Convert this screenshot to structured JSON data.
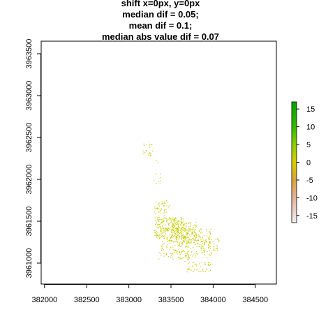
{
  "title_lines": [
    "shift x=0px, y=0px",
    "median dif = 0.05;",
    "mean dif = 0.1;",
    "median abs value dif = 0.07"
  ],
  "chart_data": {
    "type": "scatter",
    "title": "shift x=0px, y=0px\nmedian dif = 0.05;\nmean dif = 0.1;\nmedian abs value dif = 0.07",
    "xlabel": "",
    "ylabel": "",
    "xlim": [
      381960,
      384750
    ],
    "ylim": [
      3960750,
      3963650
    ],
    "x_ticks": [
      382000,
      382500,
      383000,
      383500,
      384000,
      384500
    ],
    "x_tick_labels": [
      "382000",
      "382500",
      "383000",
      "383500",
      "384000",
      "384500"
    ],
    "y_ticks": [
      3961000,
      3961500,
      3962000,
      3962500,
      3963000,
      3963500
    ],
    "y_tick_labels": [
      "3961000",
      "3961500",
      "3962000",
      "3962500",
      "3963000",
      "3963500"
    ],
    "grid": false,
    "point_color": "#c8d000",
    "point_value_range": [
      -0.5,
      0.5
    ],
    "point_clusters": [
      {
        "x": [
          383150,
          383280
        ],
        "y": [
          3962250,
          3962450
        ],
        "n": 22
      },
      {
        "x": [
          383250,
          383420
        ],
        "y": [
          3961950,
          3962250
        ],
        "n": 10
      },
      {
        "x": [
          383300,
          383480
        ],
        "y": [
          3961550,
          3961750
        ],
        "n": 45
      },
      {
        "x": [
          383300,
          383650
        ],
        "y": [
          3961300,
          3961550
        ],
        "n": 260
      },
      {
        "x": [
          383500,
          383800
        ],
        "y": [
          3961250,
          3961500
        ],
        "n": 150
      },
      {
        "x": [
          383650,
          383980
        ],
        "y": [
          3961180,
          3961420
        ],
        "n": 120
      },
      {
        "x": [
          383850,
          384080
        ],
        "y": [
          3961150,
          3961300
        ],
        "n": 45
      },
      {
        "x": [
          383350,
          383700
        ],
        "y": [
          3961050,
          3961300
        ],
        "n": 100
      },
      {
        "x": [
          383650,
          383980
        ],
        "y": [
          3960900,
          3961150
        ],
        "n": 90
      }
    ],
    "colorbar": {
      "range": [
        -17,
        17
      ],
      "ticks": [
        15,
        10,
        5,
        0,
        -5,
        -10,
        -15
      ],
      "tick_labels": [
        "15",
        "10",
        "5",
        "0",
        "-5",
        "-10",
        "-15"
      ],
      "stops": [
        {
          "value": 17,
          "color": "#00a600"
        },
        {
          "value": 10,
          "color": "#33b900"
        },
        {
          "value": 5,
          "color": "#8dcf00"
        },
        {
          "value": 0,
          "color": "#d6d000"
        },
        {
          "value": -5,
          "color": "#d9a33a"
        },
        {
          "value": -10,
          "color": "#e3b49a"
        },
        {
          "value": -15,
          "color": "#f0dcd8"
        },
        {
          "value": -17,
          "color": "#f2f2f2"
        }
      ]
    }
  }
}
